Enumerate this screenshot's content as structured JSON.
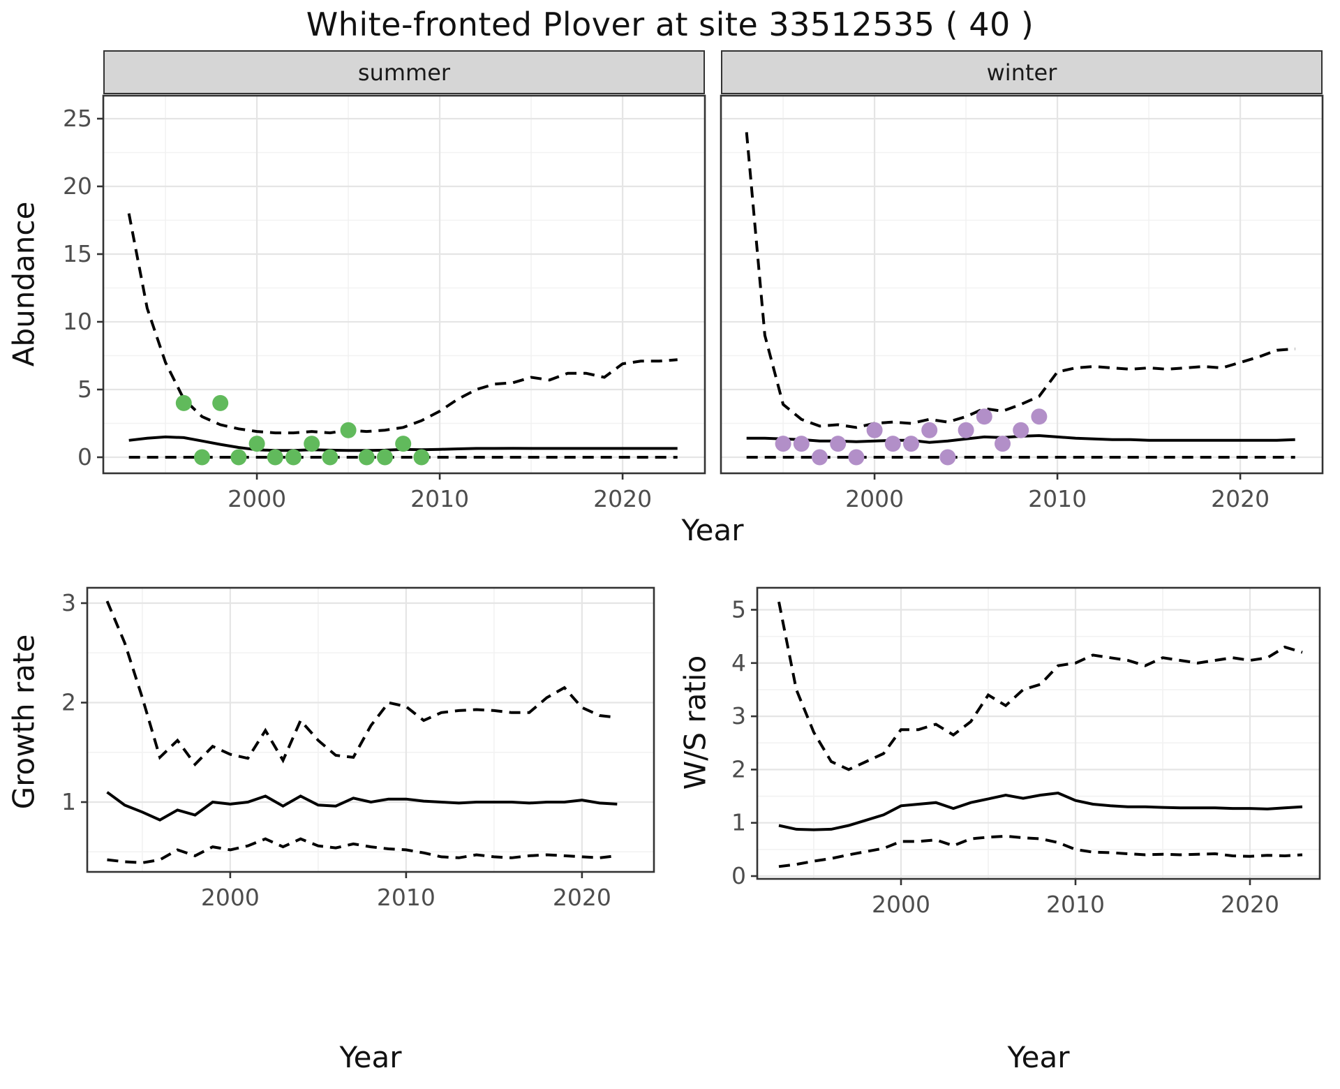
{
  "title": "White-fronted Plover at site 33512535 ( 40 )",
  "facets": [
    "summer",
    "winter"
  ],
  "axes": {
    "abundance_label": "Abundance",
    "year_label": "Year",
    "growth_label": "Growth rate",
    "ws_label": "W/S ratio"
  },
  "colors": {
    "summer_point": "#61ba5c",
    "winter_point": "#b28fc8",
    "line": "#000000",
    "strip_bg": "#d6d6d6",
    "grid_major": "#e5e5e5",
    "grid_minor": "#f2f2f2",
    "panel_border": "#333333",
    "tick_label": "#4d4d4d"
  },
  "chart_data": [
    {
      "id": "abundance_summer",
      "type": "line",
      "facet": "summer",
      "xlabel": "Year",
      "ylabel": "Abundance",
      "xticks": [
        2000,
        2010,
        2020
      ],
      "yticks": [
        0,
        5,
        10,
        15,
        20,
        25
      ],
      "xlim": [
        1991.6,
        2024.5
      ],
      "ylim": [
        -1.2,
        26.7
      ],
      "x": [
        1993,
        1994,
        1995,
        1996,
        1997,
        1998,
        1999,
        2000,
        2001,
        2002,
        2003,
        2004,
        2005,
        2006,
        2007,
        2008,
        2009,
        2010,
        2011,
        2012,
        2013,
        2014,
        2015,
        2016,
        2017,
        2018,
        2019,
        2020,
        2021,
        2022,
        2023
      ],
      "series": [
        {
          "name": "upper_95ci",
          "style": "dashed",
          "values": [
            18,
            11,
            7,
            4.3,
            3,
            2.4,
            2.1,
            1.9,
            1.8,
            1.8,
            1.9,
            1.8,
            2.0,
            1.9,
            2.0,
            2.2,
            2.7,
            3.4,
            4.3,
            5.0,
            5.4,
            5.5,
            5.9,
            5.7,
            6.2,
            6.2,
            5.9,
            6.9,
            7.1,
            7.1,
            7.2
          ]
        },
        {
          "name": "fit",
          "style": "solid",
          "values": [
            1.25,
            1.4,
            1.5,
            1.45,
            1.2,
            0.95,
            0.72,
            0.55,
            0.5,
            0.5,
            0.55,
            0.52,
            0.5,
            0.5,
            0.52,
            0.58,
            0.55,
            0.58,
            0.62,
            0.65,
            0.65,
            0.66,
            0.65,
            0.65,
            0.65,
            0.65,
            0.65,
            0.65,
            0.65,
            0.65,
            0.65
          ]
        },
        {
          "name": "lower_95ci",
          "style": "dashed",
          "values": [
            0,
            0,
            0,
            0,
            0,
            0,
            0,
            0,
            0,
            0,
            0,
            0,
            0,
            0,
            0,
            0,
            0,
            0,
            0,
            0,
            0,
            0,
            0,
            0,
            0,
            0,
            0,
            0,
            0,
            0,
            0
          ]
        }
      ],
      "points": {
        "name": "observed_counts",
        "color_key": "summer_point",
        "x": [
          1996,
          1997,
          1998,
          1999,
          2000,
          2001,
          2002,
          2003,
          2004,
          2005,
          2006,
          2007,
          2008,
          2009
        ],
        "y": [
          4,
          0,
          4,
          0,
          1,
          0,
          0,
          1,
          0,
          2,
          0,
          0,
          1,
          0
        ]
      }
    },
    {
      "id": "abundance_winter",
      "type": "line",
      "facet": "winter",
      "xlabel": "Year",
      "ylabel": "Abundance",
      "xticks": [
        2000,
        2010,
        2020
      ],
      "yticks": [
        0,
        5,
        10,
        15,
        20,
        25
      ],
      "xlim": [
        1991.6,
        2024.5
      ],
      "ylim": [
        -1.2,
        26.7
      ],
      "x": [
        1993,
        1994,
        1995,
        1996,
        1997,
        1998,
        1999,
        2000,
        2001,
        2002,
        2003,
        2004,
        2005,
        2006,
        2007,
        2008,
        2009,
        2010,
        2011,
        2012,
        2013,
        2014,
        2015,
        2016,
        2017,
        2018,
        2019,
        2020,
        2021,
        2022,
        2023
      ],
      "series": [
        {
          "name": "upper_95ci",
          "style": "dashed",
          "values": [
            24,
            9,
            3.9,
            2.8,
            2.3,
            2.4,
            2.2,
            2.5,
            2.6,
            2.5,
            2.8,
            2.6,
            3.0,
            3.6,
            3.4,
            3.9,
            4.5,
            6.3,
            6.6,
            6.7,
            6.6,
            6.5,
            6.6,
            6.5,
            6.6,
            6.7,
            6.6,
            7.0,
            7.4,
            7.9,
            8.0
          ]
        },
        {
          "name": "fit",
          "style": "solid",
          "values": [
            1.4,
            1.4,
            1.35,
            1.3,
            1.2,
            1.2,
            1.15,
            1.2,
            1.25,
            1.25,
            1.1,
            1.2,
            1.35,
            1.5,
            1.45,
            1.55,
            1.6,
            1.5,
            1.4,
            1.35,
            1.3,
            1.3,
            1.25,
            1.25,
            1.25,
            1.25,
            1.25,
            1.25,
            1.25,
            1.25,
            1.3
          ]
        },
        {
          "name": "lower_95ci",
          "style": "dashed",
          "values": [
            0,
            0,
            0,
            0,
            0,
            0,
            0,
            0,
            0,
            0,
            0,
            0,
            0,
            0,
            0,
            0,
            0,
            0,
            0,
            0,
            0,
            0,
            0,
            0,
            0,
            0,
            0,
            0,
            0,
            0,
            0
          ]
        }
      ],
      "points": {
        "name": "observed_counts",
        "color_key": "winter_point",
        "x": [
          1995,
          1996,
          1997,
          1998,
          1999,
          2000,
          2001,
          2002,
          2003,
          2004,
          2005,
          2006,
          2007,
          2008,
          2009
        ],
        "y": [
          1,
          1,
          0,
          1,
          0,
          2,
          1,
          1,
          2,
          0,
          2,
          3,
          1,
          2,
          3
        ]
      }
    },
    {
      "id": "growth_rate",
      "type": "line",
      "xlabel": "Year",
      "ylabel": "Growth rate",
      "xticks": [
        2000,
        2010,
        2020
      ],
      "yticks": [
        1,
        2,
        3
      ],
      "xlim": [
        1991.9,
        2024.1
      ],
      "ylim": [
        0.3,
        3.15
      ],
      "x": [
        1993,
        1994,
        1995,
        1996,
        1997,
        1998,
        1999,
        2000,
        2001,
        2002,
        2003,
        2004,
        2005,
        2006,
        2007,
        2008,
        2009,
        2010,
        2011,
        2012,
        2013,
        2014,
        2015,
        2016,
        2017,
        2018,
        2019,
        2020,
        2021,
        2022
      ],
      "series": [
        {
          "name": "upper_95ci",
          "style": "dashed",
          "values": [
            3.02,
            2.6,
            2.05,
            1.45,
            1.62,
            1.38,
            1.56,
            1.48,
            1.44,
            1.72,
            1.42,
            1.82,
            1.62,
            1.47,
            1.45,
            1.77,
            2.0,
            1.96,
            1.82,
            1.9,
            1.92,
            1.93,
            1.92,
            1.9,
            1.9,
            2.05,
            2.15,
            1.95,
            1.87,
            1.85
          ]
        },
        {
          "name": "fit",
          "style": "solid",
          "values": [
            1.1,
            0.97,
            0.9,
            0.82,
            0.92,
            0.87,
            1.0,
            0.98,
            1.0,
            1.06,
            0.96,
            1.06,
            0.97,
            0.96,
            1.04,
            1.0,
            1.03,
            1.03,
            1.01,
            1.0,
            0.99,
            1.0,
            1.0,
            1.0,
            0.99,
            1.0,
            1.0,
            1.02,
            0.99,
            0.98
          ]
        },
        {
          "name": "lower_95ci",
          "style": "dashed",
          "values": [
            0.42,
            0.4,
            0.39,
            0.42,
            0.52,
            0.46,
            0.55,
            0.52,
            0.56,
            0.63,
            0.55,
            0.63,
            0.56,
            0.54,
            0.58,
            0.55,
            0.53,
            0.52,
            0.49,
            0.45,
            0.44,
            0.47,
            0.45,
            0.44,
            0.46,
            0.47,
            0.46,
            0.45,
            0.44,
            0.46
          ]
        }
      ]
    },
    {
      "id": "ws_ratio",
      "type": "line",
      "xlabel": "Year",
      "ylabel": "W/S ratio",
      "xticks": [
        2000,
        2010,
        2020
      ],
      "yticks": [
        0,
        1,
        2,
        3,
        4,
        5
      ],
      "xlim": [
        1991.8,
        2024.0
      ],
      "ylim": [
        -0.05,
        5.41
      ],
      "x": [
        1993,
        1994,
        1995,
        1996,
        1997,
        1998,
        1999,
        2000,
        2001,
        2002,
        2003,
        2004,
        2005,
        2006,
        2007,
        2008,
        2009,
        2010,
        2011,
        2012,
        2013,
        2014,
        2015,
        2016,
        2017,
        2018,
        2019,
        2020,
        2021,
        2022,
        2023
      ],
      "series": [
        {
          "name": "upper_95ci",
          "style": "dashed",
          "values": [
            5.15,
            3.5,
            2.7,
            2.15,
            2.0,
            2.15,
            2.3,
            2.75,
            2.75,
            2.85,
            2.65,
            2.9,
            3.4,
            3.2,
            3.5,
            3.6,
            3.95,
            4.0,
            4.15,
            4.1,
            4.05,
            3.95,
            4.1,
            4.05,
            4.0,
            4.05,
            4.1,
            4.05,
            4.1,
            4.3,
            4.2
          ]
        },
        {
          "name": "fit",
          "style": "solid",
          "values": [
            0.95,
            0.88,
            0.87,
            0.88,
            0.95,
            1.05,
            1.15,
            1.32,
            1.35,
            1.38,
            1.27,
            1.38,
            1.45,
            1.52,
            1.46,
            1.52,
            1.56,
            1.42,
            1.35,
            1.32,
            1.3,
            1.3,
            1.29,
            1.28,
            1.28,
            1.28,
            1.27,
            1.27,
            1.26,
            1.28,
            1.3
          ]
        },
        {
          "name": "lower_95ci",
          "style": "dashed",
          "values": [
            0.18,
            0.22,
            0.28,
            0.33,
            0.4,
            0.46,
            0.52,
            0.65,
            0.65,
            0.68,
            0.57,
            0.7,
            0.73,
            0.75,
            0.72,
            0.7,
            0.63,
            0.5,
            0.45,
            0.44,
            0.42,
            0.4,
            0.41,
            0.4,
            0.41,
            0.42,
            0.38,
            0.37,
            0.39,
            0.38,
            0.4
          ]
        }
      ]
    }
  ]
}
